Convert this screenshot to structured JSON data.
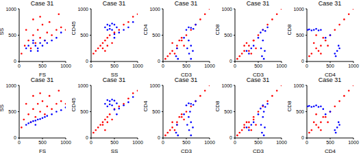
{
  "chart_data": [
    {
      "type": "scatter",
      "title": "Case 31",
      "x_label": "FS",
      "y_label": "SS",
      "xlim": [
        0,
        1000
      ],
      "ylim": [
        0,
        1000
      ],
      "xticks": [
        0,
        500,
        1000
      ],
      "yticks": [
        0,
        500,
        1000
      ],
      "series": [
        {
          "color": "#ff0000",
          "x": [
            50,
            120,
            200,
            250,
            300,
            350,
            400,
            450,
            500,
            550,
            600,
            700,
            800,
            900,
            1000,
            150,
            300,
            450,
            650,
            850
          ],
          "y": [
            150,
            300,
            400,
            250,
            500,
            350,
            600,
            450,
            700,
            400,
            550,
            500,
            600,
            650,
            600,
            600,
            800,
            850,
            750,
            900
          ]
        },
        {
          "color": "#0000ff",
          "x": [
            150,
            200,
            250,
            300,
            350,
            400,
            450,
            500,
            550,
            600,
            700,
            800,
            900,
            300,
            400
          ],
          "y": [
            250,
            300,
            200,
            350,
            300,
            250,
            350,
            300,
            400,
            350,
            400,
            450,
            550,
            400,
            200
          ]
        }
      ]
    },
    {
      "type": "scatter",
      "title": "Case 31",
      "x_label": "SS",
      "y_label": "CD45",
      "xlim": [
        0,
        1000
      ],
      "ylim": [
        0,
        1000
      ],
      "xticks": [
        0,
        500,
        1000
      ],
      "yticks": [
        0,
        500,
        1000
      ],
      "series": [
        {
          "color": "#ff0000",
          "x": [
            50,
            100,
            150,
            200,
            250,
            300,
            350,
            400,
            500,
            600,
            700,
            800,
            900,
            1000,
            250,
            350,
            450,
            300
          ],
          "y": [
            150,
            200,
            250,
            300,
            350,
            400,
            450,
            500,
            550,
            600,
            700,
            750,
            850,
            900,
            250,
            300,
            350,
            200
          ]
        },
        {
          "color": "#0000ff",
          "x": [
            300,
            350,
            400,
            450,
            500,
            550,
            400,
            450,
            350,
            500,
            600,
            700,
            800,
            900,
            500
          ],
          "y": [
            650,
            700,
            680,
            720,
            700,
            650,
            620,
            600,
            600,
            520,
            550,
            600,
            650,
            750,
            450
          ]
        }
      ]
    },
    {
      "type": "scatter",
      "title": "Case 31",
      "x_label": "CD3",
      "y_label": "CD4",
      "xlim": [
        0,
        1000
      ],
      "ylim": [
        0,
        1000
      ],
      "xticks": [
        0,
        500,
        1000
      ],
      "yticks": [
        0,
        500,
        1000
      ],
      "series": [
        {
          "color": "#ff0000",
          "x": [
            50,
            100,
            150,
            200,
            300,
            400,
            500,
            600,
            700,
            800,
            900,
            1000,
            200,
            300,
            400,
            250,
            350,
            450
          ],
          "y": [
            50,
            100,
            150,
            200,
            300,
            400,
            500,
            600,
            700,
            800,
            900,
            1000,
            350,
            250,
            450,
            150,
            400,
            300
          ]
        },
        {
          "color": "#0000ff",
          "x": [
            500,
            550,
            600,
            650,
            520,
            560,
            600,
            640,
            280,
            300,
            320,
            550,
            600,
            450,
            700
          ],
          "y": [
            600,
            650,
            640,
            620,
            250,
            150,
            50,
            200,
            100,
            250,
            50,
            400,
            300,
            450,
            700
          ]
        }
      ]
    },
    {
      "type": "scatter",
      "title": "Case 31",
      "x_label": "CD3",
      "y_label": "CD8",
      "xlim": [
        0,
        1000
      ],
      "ylim": [
        0,
        1000
      ],
      "xticks": [
        0,
        500,
        1000
      ],
      "yticks": [
        0,
        500,
        1000
      ],
      "series": [
        {
          "color": "#ff0000",
          "x": [
            50,
            100,
            150,
            200,
            300,
            400,
            500,
            600,
            700,
            800,
            900,
            1000,
            200,
            300,
            400,
            250,
            350,
            450
          ],
          "y": [
            50,
            100,
            150,
            200,
            300,
            400,
            500,
            600,
            700,
            800,
            900,
            1000,
            300,
            200,
            400,
            350,
            150,
            250
          ]
        },
        {
          "color": "#0000ff",
          "x": [
            550,
            600,
            650,
            560,
            580,
            620,
            640,
            250,
            300,
            350,
            400,
            600,
            500,
            700
          ],
          "y": [
            550,
            600,
            580,
            250,
            100,
            50,
            200,
            200,
            150,
            250,
            300,
            400,
            450,
            650
          ]
        }
      ]
    },
    {
      "type": "scatter",
      "title": "Case 31",
      "x_label": "CD4",
      "y_label": "CD8",
      "xlim": [
        0,
        1000
      ],
      "ylim": [
        0,
        1000
      ],
      "xticks": [
        0,
        500,
        1000
      ],
      "yticks": [
        0,
        500,
        1000
      ],
      "series": [
        {
          "color": "#ff0000",
          "x": [
            50,
            100,
            200,
            300,
            400,
            500,
            600,
            700,
            800,
            900,
            1000,
            150,
            250,
            350,
            450,
            200,
            300
          ],
          "y": [
            100,
            150,
            250,
            300,
            400,
            500,
            600,
            700,
            800,
            900,
            1000,
            350,
            200,
            450,
            300,
            500,
            150
          ]
        },
        {
          "color": "#0000ff",
          "x": [
            20,
            50,
            100,
            150,
            200,
            250,
            300,
            600,
            650,
            700,
            620,
            680,
            400,
            500
          ],
          "y": [
            600,
            610,
            590,
            600,
            620,
            590,
            600,
            150,
            200,
            250,
            100,
            300,
            450,
            500
          ]
        }
      ]
    },
    {
      "type": "scatter",
      "title": "Case 31",
      "x_label": "FS",
      "y_label": "SS",
      "xlim": [
        0,
        1000
      ],
      "ylim": [
        0,
        1000
      ],
      "xticks": [
        0,
        500,
        1000
      ],
      "yticks": [
        0,
        500,
        1000
      ],
      "series": [
        {
          "color": "#ff0000",
          "x": [
            50,
            100,
            200,
            250,
            300,
            350,
            400,
            450,
            500,
            550,
            600,
            700,
            800,
            900,
            1000,
            150,
            300,
            450,
            650,
            850
          ],
          "y": [
            200,
            350,
            450,
            300,
            550,
            400,
            650,
            500,
            700,
            450,
            600,
            550,
            650,
            700,
            650,
            650,
            800,
            850,
            800,
            900
          ]
        },
        {
          "color": "#0000ff",
          "x": [
            150,
            200,
            250,
            300,
            350,
            400,
            450,
            500,
            550,
            600,
            700,
            800,
            900,
            1000,
            350
          ],
          "y": [
            250,
            280,
            300,
            320,
            330,
            350,
            360,
            380,
            400,
            420,
            450,
            500,
            530,
            580,
            250
          ]
        }
      ]
    },
    {
      "type": "scatter",
      "title": "Case 31",
      "x_label": "SS",
      "y_label": "CD45",
      "xlim": [
        0,
        1000
      ],
      "ylim": [
        0,
        1000
      ],
      "xticks": [
        0,
        500,
        1000
      ],
      "yticks": [
        0,
        500,
        1000
      ],
      "series": [
        {
          "color": "#ff0000",
          "x": [
            50,
            100,
            150,
            200,
            250,
            300,
            350,
            400,
            500,
            600,
            700,
            800,
            900,
            1000,
            250,
            350,
            450,
            300
          ],
          "y": [
            100,
            150,
            200,
            250,
            300,
            350,
            400,
            450,
            550,
            600,
            650,
            750,
            850,
            900,
            250,
            300,
            350,
            150
          ]
        },
        {
          "color": "#0000ff",
          "x": [
            300,
            350,
            400,
            450,
            500,
            550,
            400,
            450,
            350,
            500,
            600,
            700,
            800,
            900,
            550
          ],
          "y": [
            650,
            720,
            700,
            730,
            710,
            660,
            640,
            620,
            600,
            540,
            560,
            620,
            680,
            780,
            450
          ]
        }
      ]
    },
    {
      "type": "scatter",
      "title": "Case 31",
      "x_label": "CD3",
      "y_label": "CD4",
      "xlim": [
        0,
        1000
      ],
      "ylim": [
        0,
        1000
      ],
      "xticks": [
        0,
        500,
        1000
      ],
      "yticks": [
        0,
        500,
        1000
      ],
      "series": [
        {
          "color": "#ff0000",
          "x": [
            50,
            100,
            150,
            200,
            300,
            400,
            500,
            600,
            700,
            800,
            900,
            1000,
            200,
            300,
            400,
            250,
            350,
            450
          ],
          "y": [
            50,
            100,
            150,
            200,
            300,
            400,
            500,
            600,
            700,
            800,
            900,
            1000,
            300,
            250,
            450,
            150,
            400,
            350
          ]
        },
        {
          "color": "#0000ff",
          "x": [
            500,
            550,
            600,
            650,
            520,
            560,
            600,
            640,
            280,
            300,
            320,
            550,
            600,
            450,
            700,
            580
          ],
          "y": [
            620,
            660,
            650,
            630,
            250,
            150,
            50,
            200,
            100,
            250,
            50,
            400,
            300,
            450,
            700,
            500
          ]
        }
      ]
    },
    {
      "type": "scatter",
      "title": "Case 31",
      "x_label": "CD3",
      "y_label": "CD8",
      "xlim": [
        0,
        1000
      ],
      "ylim": [
        0,
        1000
      ],
      "xticks": [
        0,
        500,
        1000
      ],
      "yticks": [
        0,
        500,
        1000
      ],
      "series": [
        {
          "color": "#ff0000",
          "x": [
            50,
            100,
            150,
            200,
            300,
            400,
            500,
            600,
            700,
            800,
            900,
            1000,
            200,
            300,
            400,
            250,
            350,
            450
          ],
          "y": [
            50,
            100,
            150,
            200,
            300,
            400,
            500,
            600,
            700,
            800,
            900,
            1000,
            250,
            200,
            350,
            300,
            150,
            250
          ]
        },
        {
          "color": "#0000ff",
          "x": [
            550,
            600,
            650,
            560,
            580,
            620,
            640,
            250,
            300,
            350,
            400,
            600,
            500,
            700,
            620
          ],
          "y": [
            560,
            620,
            590,
            250,
            100,
            50,
            200,
            200,
            150,
            250,
            300,
            400,
            450,
            650,
            500
          ]
        }
      ]
    },
    {
      "type": "scatter",
      "title": "Case 31",
      "x_label": "CD4",
      "y_label": "CD8",
      "xlim": [
        0,
        1000
      ],
      "ylim": [
        0,
        1000
      ],
      "xticks": [
        0,
        500,
        1000
      ],
      "yticks": [
        0,
        500,
        1000
      ],
      "series": [
        {
          "color": "#ff0000",
          "x": [
            50,
            100,
            200,
            300,
            400,
            500,
            600,
            700,
            800,
            900,
            1000,
            150,
            250,
            350,
            450,
            200,
            300
          ],
          "y": [
            100,
            150,
            250,
            300,
            400,
            500,
            600,
            700,
            800,
            900,
            1000,
            300,
            200,
            400,
            300,
            450,
            150
          ]
        },
        {
          "color": "#0000ff",
          "x": [
            20,
            50,
            100,
            150,
            200,
            250,
            300,
            600,
            650,
            700,
            620,
            680,
            400,
            500,
            350
          ],
          "y": [
            600,
            610,
            590,
            600,
            620,
            590,
            600,
            150,
            200,
            250,
            100,
            300,
            450,
            500,
            550
          ]
        }
      ]
    }
  ]
}
